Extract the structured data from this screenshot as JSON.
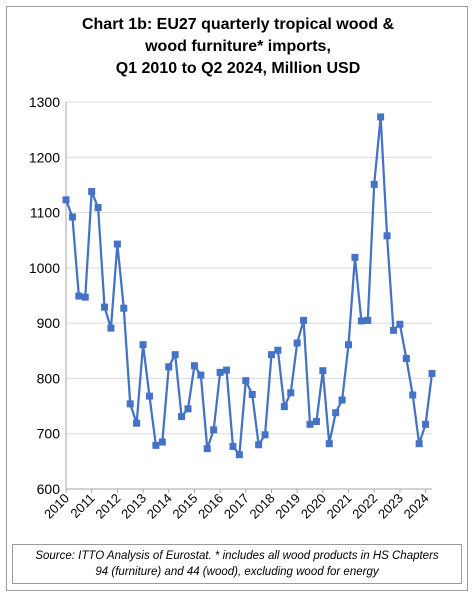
{
  "chart_data": {
    "type": "line",
    "title_lines": [
      "Chart 1b: EU27 quarterly tropical wood &",
      "wood furniture* imports,",
      "Q1 2010 to Q2 2024, Million USD"
    ],
    "xlabel": "",
    "ylabel": "",
    "ylim": [
      600,
      1300
    ],
    "yticks": [
      600,
      700,
      800,
      900,
      1000,
      1100,
      1200,
      1300
    ],
    "xticks": [
      "2010",
      "2011",
      "2012",
      "2013",
      "2014",
      "2015",
      "2016",
      "2017",
      "2018",
      "2019",
      "2020",
      "2021",
      "2022",
      "2023",
      "2024"
    ],
    "grid": true,
    "legend": "none",
    "series": [
      {
        "color": "#4472C4",
        "marker": "square",
        "x": [
          "2010 Q1",
          "2010 Q2",
          "2010 Q3",
          "2010 Q4",
          "2011 Q1",
          "2011 Q2",
          "2011 Q3",
          "2011 Q4",
          "2012 Q1",
          "2012 Q2",
          "2012 Q3",
          "2012 Q4",
          "2013 Q1",
          "2013 Q2",
          "2013 Q3",
          "2013 Q4",
          "2014 Q1",
          "2014 Q2",
          "2014 Q3",
          "2014 Q4",
          "2015 Q1",
          "2015 Q2",
          "2015 Q3",
          "2015 Q4",
          "2016 Q1",
          "2016 Q2",
          "2016 Q3",
          "2016 Q4",
          "2017 Q1",
          "2017 Q2",
          "2017 Q3",
          "2017 Q4",
          "2018 Q1",
          "2018 Q2",
          "2018 Q3",
          "2018 Q4",
          "2019 Q1",
          "2019 Q2",
          "2019 Q3",
          "2019 Q4",
          "2020 Q1",
          "2020 Q2",
          "2020 Q3",
          "2020 Q4",
          "2021 Q1",
          "2021 Q2",
          "2021 Q3",
          "2021 Q4",
          "2022 Q1",
          "2022 Q2",
          "2022 Q3",
          "2022 Q4",
          "2023 Q1",
          "2023 Q2",
          "2023 Q3",
          "2023 Q4",
          "2024 Q1",
          "2024 Q2"
        ],
        "values": [
          1123,
          1092,
          949,
          947,
          1138,
          1109,
          929,
          891,
          1043,
          927,
          754,
          719,
          861,
          768,
          679,
          685,
          821,
          843,
          731,
          745,
          823,
          806,
          673,
          707,
          811,
          815,
          677,
          662,
          796,
          771,
          680,
          698,
          843,
          851,
          749,
          774,
          864,
          905,
          717,
          722,
          814,
          682,
          738,
          761,
          861,
          1019,
          904,
          905,
          1151,
          1273,
          1058,
          887,
          898,
          836,
          770,
          682,
          717,
          809
        ]
      }
    ]
  },
  "source_note": {
    "line1": "Source: ITTO Analysis of Eurostat. * includes all wood products in HS Chapters",
    "line2": "94 (furniture) and 44 (wood), excluding wood for energy"
  }
}
